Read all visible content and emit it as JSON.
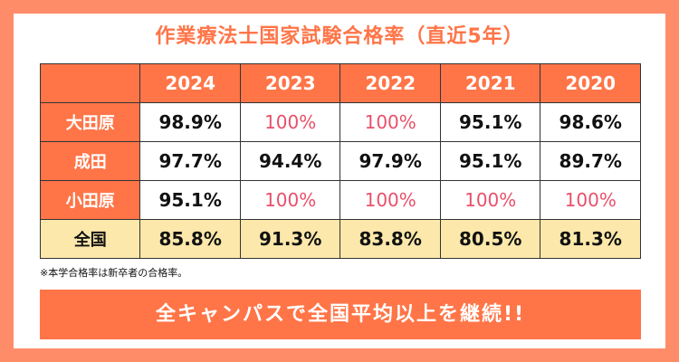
{
  "title": "作業療法士国家試験合格率（直近5年）",
  "table": {
    "headers": [
      "",
      "2024",
      "2023",
      "2022",
      "2021",
      "2020"
    ],
    "rows": [
      {
        "label": "大田原",
        "values": [
          "98.9%",
          "100%",
          "100%",
          "95.1%",
          "98.6%"
        ]
      },
      {
        "label": "成田",
        "values": [
          "97.7%",
          "94.4%",
          "97.9%",
          "95.1%",
          "89.7%"
        ]
      },
      {
        "label": "小田原",
        "values": [
          "95.1%",
          "100%",
          "100%",
          "100%",
          "100%"
        ]
      },
      {
        "label": "全国",
        "values": [
          "85.8%",
          "91.3%",
          "83.8%",
          "80.5%",
          "81.3%"
        ]
      }
    ]
  },
  "note": "※本学合格率は新卒者の合格率。",
  "banner": "全キャンパスで全国平均以上を継続!!",
  "colors": {
    "accent": "#ff7548",
    "highlight": "#e8506a",
    "national": "#fbe8aa"
  }
}
